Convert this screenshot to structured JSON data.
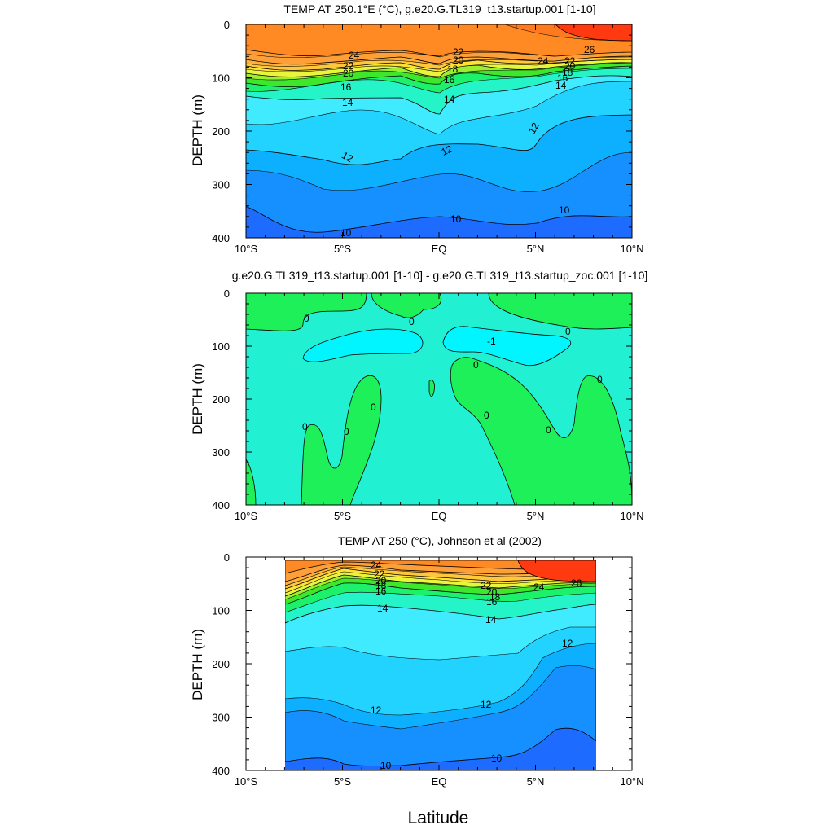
{
  "figure": {
    "xlabel": "Latitude",
    "x_ticks": [
      "10°S",
      "5°S",
      "EQ",
      "5°N",
      "10°N"
    ],
    "y_ticks": [
      "0",
      "100",
      "200",
      "300",
      "400"
    ]
  },
  "chart_data": [
    {
      "type": "contour",
      "title": "TEMP AT 250.1°E (°C), g.e20.G.TL319_t13.startup.001 [1-10]",
      "xlabel": "Latitude",
      "ylabel": "DEPTH (m)",
      "xlim": [
        -10,
        10
      ],
      "ylim": [
        400,
        0
      ],
      "x_ticks": [
        "10°S",
        "5°S",
        "EQ",
        "5°N",
        "10°N"
      ],
      "y_ticks": [
        0,
        100,
        200,
        300,
        400
      ],
      "levels": [
        10,
        11,
        12,
        13,
        14,
        15,
        16,
        17,
        18,
        19,
        20,
        21,
        22,
        23,
        24,
        25,
        26
      ],
      "level_colors": [
        "#1e6bff",
        "#168fff",
        "#0cb0ff",
        "#22d2ff",
        "#40eaff",
        "#25f4c8",
        "#1df06a",
        "#3ee62c",
        "#9cef2e",
        "#e8f53a",
        "#ffe133",
        "#ffc83a",
        "#ffb03c",
        "#ff9f38",
        "#ff8a24",
        "#ff6a1e",
        "#ff3a10"
      ],
      "isotherms": {
        "t26": [
          [
            6.0,
            10
          ],
          [
            7.0,
            22
          ],
          [
            8.0,
            28
          ],
          [
            10.0,
            30
          ]
        ],
        "t24": [
          [
            -10.0,
            48
          ],
          [
            -8.0,
            60
          ],
          [
            -6.0,
            62
          ],
          [
            -4.0,
            54
          ],
          [
            -2.0,
            52
          ],
          [
            -0.5,
            60
          ],
          [
            1.0,
            52
          ],
          [
            3.0,
            50
          ],
          [
            4.0,
            60
          ],
          [
            6.0,
            60
          ],
          [
            8.0,
            55
          ],
          [
            10.0,
            52
          ]
        ],
        "t22": [
          [
            -10.0,
            65
          ],
          [
            -8.0,
            78
          ],
          [
            -6.0,
            75
          ],
          [
            -4.0,
            66
          ],
          [
            -2.0,
            62
          ],
          [
            -0.5,
            74
          ],
          [
            1.0,
            60
          ],
          [
            3.0,
            62
          ],
          [
            4.0,
            72
          ],
          [
            6.0,
            70
          ],
          [
            8.0,
            62
          ],
          [
            10.0,
            60
          ]
        ],
        "t20": [
          [
            -10.0,
            78
          ],
          [
            -8.0,
            90
          ],
          [
            -6.0,
            86
          ],
          [
            -4.0,
            77
          ],
          [
            -2.0,
            72
          ],
          [
            -0.5,
            85
          ],
          [
            1.0,
            68
          ],
          [
            3.0,
            74
          ],
          [
            4.0,
            80
          ],
          [
            6.0,
            76
          ],
          [
            8.0,
            68
          ],
          [
            10.0,
            66
          ]
        ],
        "t18": [
          [
            -10.0,
            93
          ],
          [
            -8.0,
            103
          ],
          [
            -6.0,
            98
          ],
          [
            -4.0,
            88
          ],
          [
            -2.0,
            82
          ],
          [
            -0.5,
            98
          ],
          [
            1.0,
            78
          ],
          [
            3.0,
            84
          ],
          [
            4.0,
            90
          ],
          [
            6.0,
            83
          ],
          [
            8.0,
            74
          ],
          [
            10.0,
            72
          ]
        ],
        "t16": [
          [
            -10.0,
            110
          ],
          [
            -8.0,
            118
          ],
          [
            -6.0,
            112
          ],
          [
            -4.0,
            100
          ],
          [
            -2.0,
            96
          ],
          [
            -0.5,
            112
          ],
          [
            1.0,
            92
          ],
          [
            3.0,
            98
          ],
          [
            4.0,
            102
          ],
          [
            6.0,
            92
          ],
          [
            8.0,
            82
          ],
          [
            10.0,
            80
          ]
        ],
        "t14": [
          [
            -10.0,
            135
          ],
          [
            -8.0,
            145
          ],
          [
            -6.0,
            142
          ],
          [
            -4.0,
            140
          ],
          [
            -2.0,
            138
          ],
          [
            -0.5,
            168
          ],
          [
            0.5,
            132
          ],
          [
            2.0,
            128
          ],
          [
            4.0,
            122
          ],
          [
            6.0,
            110
          ],
          [
            8.0,
            100
          ],
          [
            10.0,
            98
          ]
        ],
        "t12": [
          [
            -10.0,
            235
          ],
          [
            -8.0,
            240
          ],
          [
            -6.0,
            250
          ],
          [
            -4.0,
            272
          ],
          [
            -2.0,
            252
          ],
          [
            0.0,
            222
          ],
          [
            2.0,
            222
          ],
          [
            4.0,
            246
          ],
          [
            5.0,
            220
          ],
          [
            6.0,
            186
          ],
          [
            8.0,
            172
          ],
          [
            10.0,
            170
          ]
        ],
        "t10": [
          [
            -10.0,
            338
          ],
          [
            -8.0,
            352
          ],
          [
            -6.0,
            392
          ],
          [
            -4.0,
            388
          ],
          [
            -2.0,
            370
          ],
          [
            0.0,
            362
          ],
          [
            2.0,
            366
          ],
          [
            4.0,
            378
          ],
          [
            5.0,
            368
          ],
          [
            6.5,
            350
          ],
          [
            8.5,
            358
          ],
          [
            10.0,
            360
          ]
        ]
      },
      "contour_labels": [
        "24",
        "22",
        "20",
        "18",
        "16",
        "14",
        "12",
        "10",
        "26"
      ]
    },
    {
      "type": "contour",
      "title": "g.e20.G.TL319_t13.startup.001 [1-10] - g.e20.G.TL319_t13.startup_zoc.001 [1-10]",
      "xlabel": "Latitude",
      "ylabel": "DEPTH (m)",
      "xlim": [
        -10,
        10
      ],
      "ylim": [
        400,
        0
      ],
      "x_ticks": [
        "10°S",
        "5°S",
        "EQ",
        "5°N",
        "10°N"
      ],
      "y_ticks": [
        0,
        100,
        200,
        300,
        400
      ],
      "levels": [
        -1,
        0
      ],
      "level_colors": [
        "#00f5ff",
        "#22f0d2",
        "#1ef05a"
      ],
      "contour_labels": [
        "0",
        "-1"
      ]
    },
    {
      "type": "contour",
      "title": "TEMP AT 250 (°C), Johnson et al (2002)",
      "xlabel": "Latitude",
      "ylabel": "DEPTH (m)",
      "xlim": [
        -10,
        10
      ],
      "ylim": [
        400,
        0
      ],
      "data_xrange": [
        -8,
        8
      ],
      "data_yrange": [
        10,
        400
      ],
      "x_ticks": [
        "10°S",
        "5°S",
        "EQ",
        "5°N",
        "10°N"
      ],
      "y_ticks": [
        0,
        100,
        200,
        300,
        400
      ],
      "levels": [
        10,
        11,
        12,
        13,
        14,
        15,
        16,
        17,
        18,
        19,
        20,
        21,
        22,
        23,
        24,
        25,
        26
      ],
      "isotherms": {
        "t26": [
          [
            4.0,
            10
          ],
          [
            5.0,
            25
          ],
          [
            7.0,
            30
          ],
          [
            8.0,
            32
          ]
        ],
        "t24": [
          [
            -8.0,
            40
          ],
          [
            -7.0,
            22
          ],
          [
            -5.0,
            18
          ],
          [
            -3.0,
            22
          ],
          [
            -1.0,
            26
          ],
          [
            1.0,
            30
          ],
          [
            3.0,
            36
          ],
          [
            5.0,
            40
          ],
          [
            7.0,
            42
          ],
          [
            8.0,
            44
          ]
        ],
        "t22": [
          [
            -8.0,
            55
          ],
          [
            -7.0,
            38
          ],
          [
            -5.0,
            28
          ],
          [
            -3.0,
            36
          ],
          [
            -1.0,
            44
          ],
          [
            1.0,
            48
          ],
          [
            3.0,
            52
          ],
          [
            5.0,
            52
          ],
          [
            7.0,
            52
          ],
          [
            8.0,
            52
          ]
        ],
        "t20": [
          [
            -8.0,
            68
          ],
          [
            -7.0,
            50
          ],
          [
            -5.0,
            36
          ],
          [
            -3.0,
            46
          ],
          [
            -1.0,
            54
          ],
          [
            1.0,
            58
          ],
          [
            3.0,
            62
          ],
          [
            5.0,
            60
          ],
          [
            7.0,
            58
          ],
          [
            8.0,
            58
          ]
        ],
        "t18": [
          [
            -8.0,
            80
          ],
          [
            -7.0,
            62
          ],
          [
            -5.0,
            44
          ],
          [
            -3.0,
            55
          ],
          [
            -1.0,
            62
          ],
          [
            1.0,
            66
          ],
          [
            3.0,
            70
          ],
          [
            5.0,
            66
          ],
          [
            7.0,
            64
          ],
          [
            8.0,
            63
          ]
        ],
        "t16": [
          [
            -8.0,
            92
          ],
          [
            -7.0,
            74
          ],
          [
            -5.0,
            58
          ],
          [
            -3.0,
            66
          ],
          [
            -1.0,
            72
          ],
          [
            1.0,
            76
          ],
          [
            3.0,
            80
          ],
          [
            5.0,
            74
          ],
          [
            7.0,
            70
          ],
          [
            8.0,
            69
          ]
        ],
        "t14": [
          [
            -8.0,
            112
          ],
          [
            -7.0,
            96
          ],
          [
            -5.0,
            86
          ],
          [
            -3.0,
            90
          ],
          [
            -1.0,
            94
          ],
          [
            1.0,
            100
          ],
          [
            3.0,
            110
          ],
          [
            5.0,
            104
          ],
          [
            7.0,
            94
          ],
          [
            8.0,
            90
          ]
        ],
        "t12": [
          [
            -8.0,
            262
          ],
          [
            -7.0,
            258
          ],
          [
            -5.0,
            262
          ],
          [
            -3.0,
            292
          ],
          [
            -1.0,
            298
          ],
          [
            1.0,
            290
          ],
          [
            3.0,
            278
          ],
          [
            5.0,
            210
          ],
          [
            6.5,
            168
          ],
          [
            8.0,
            158
          ]
        ],
        "t10": [
          [
            -8.0,
            382
          ],
          [
            -6.0,
            368
          ],
          [
            -4.0,
            380
          ],
          [
            -3.0,
            392
          ],
          [
            -1.0,
            388
          ],
          [
            1.0,
            380
          ],
          [
            3.0,
            372
          ],
          [
            5.0,
            360
          ],
          [
            6.0,
            328
          ],
          [
            7.0,
            325
          ],
          [
            8.0,
            345
          ]
        ]
      },
      "contour_labels": [
        "24",
        "22",
        "20",
        "18",
        "16",
        "14",
        "12",
        "10",
        "26"
      ]
    }
  ]
}
